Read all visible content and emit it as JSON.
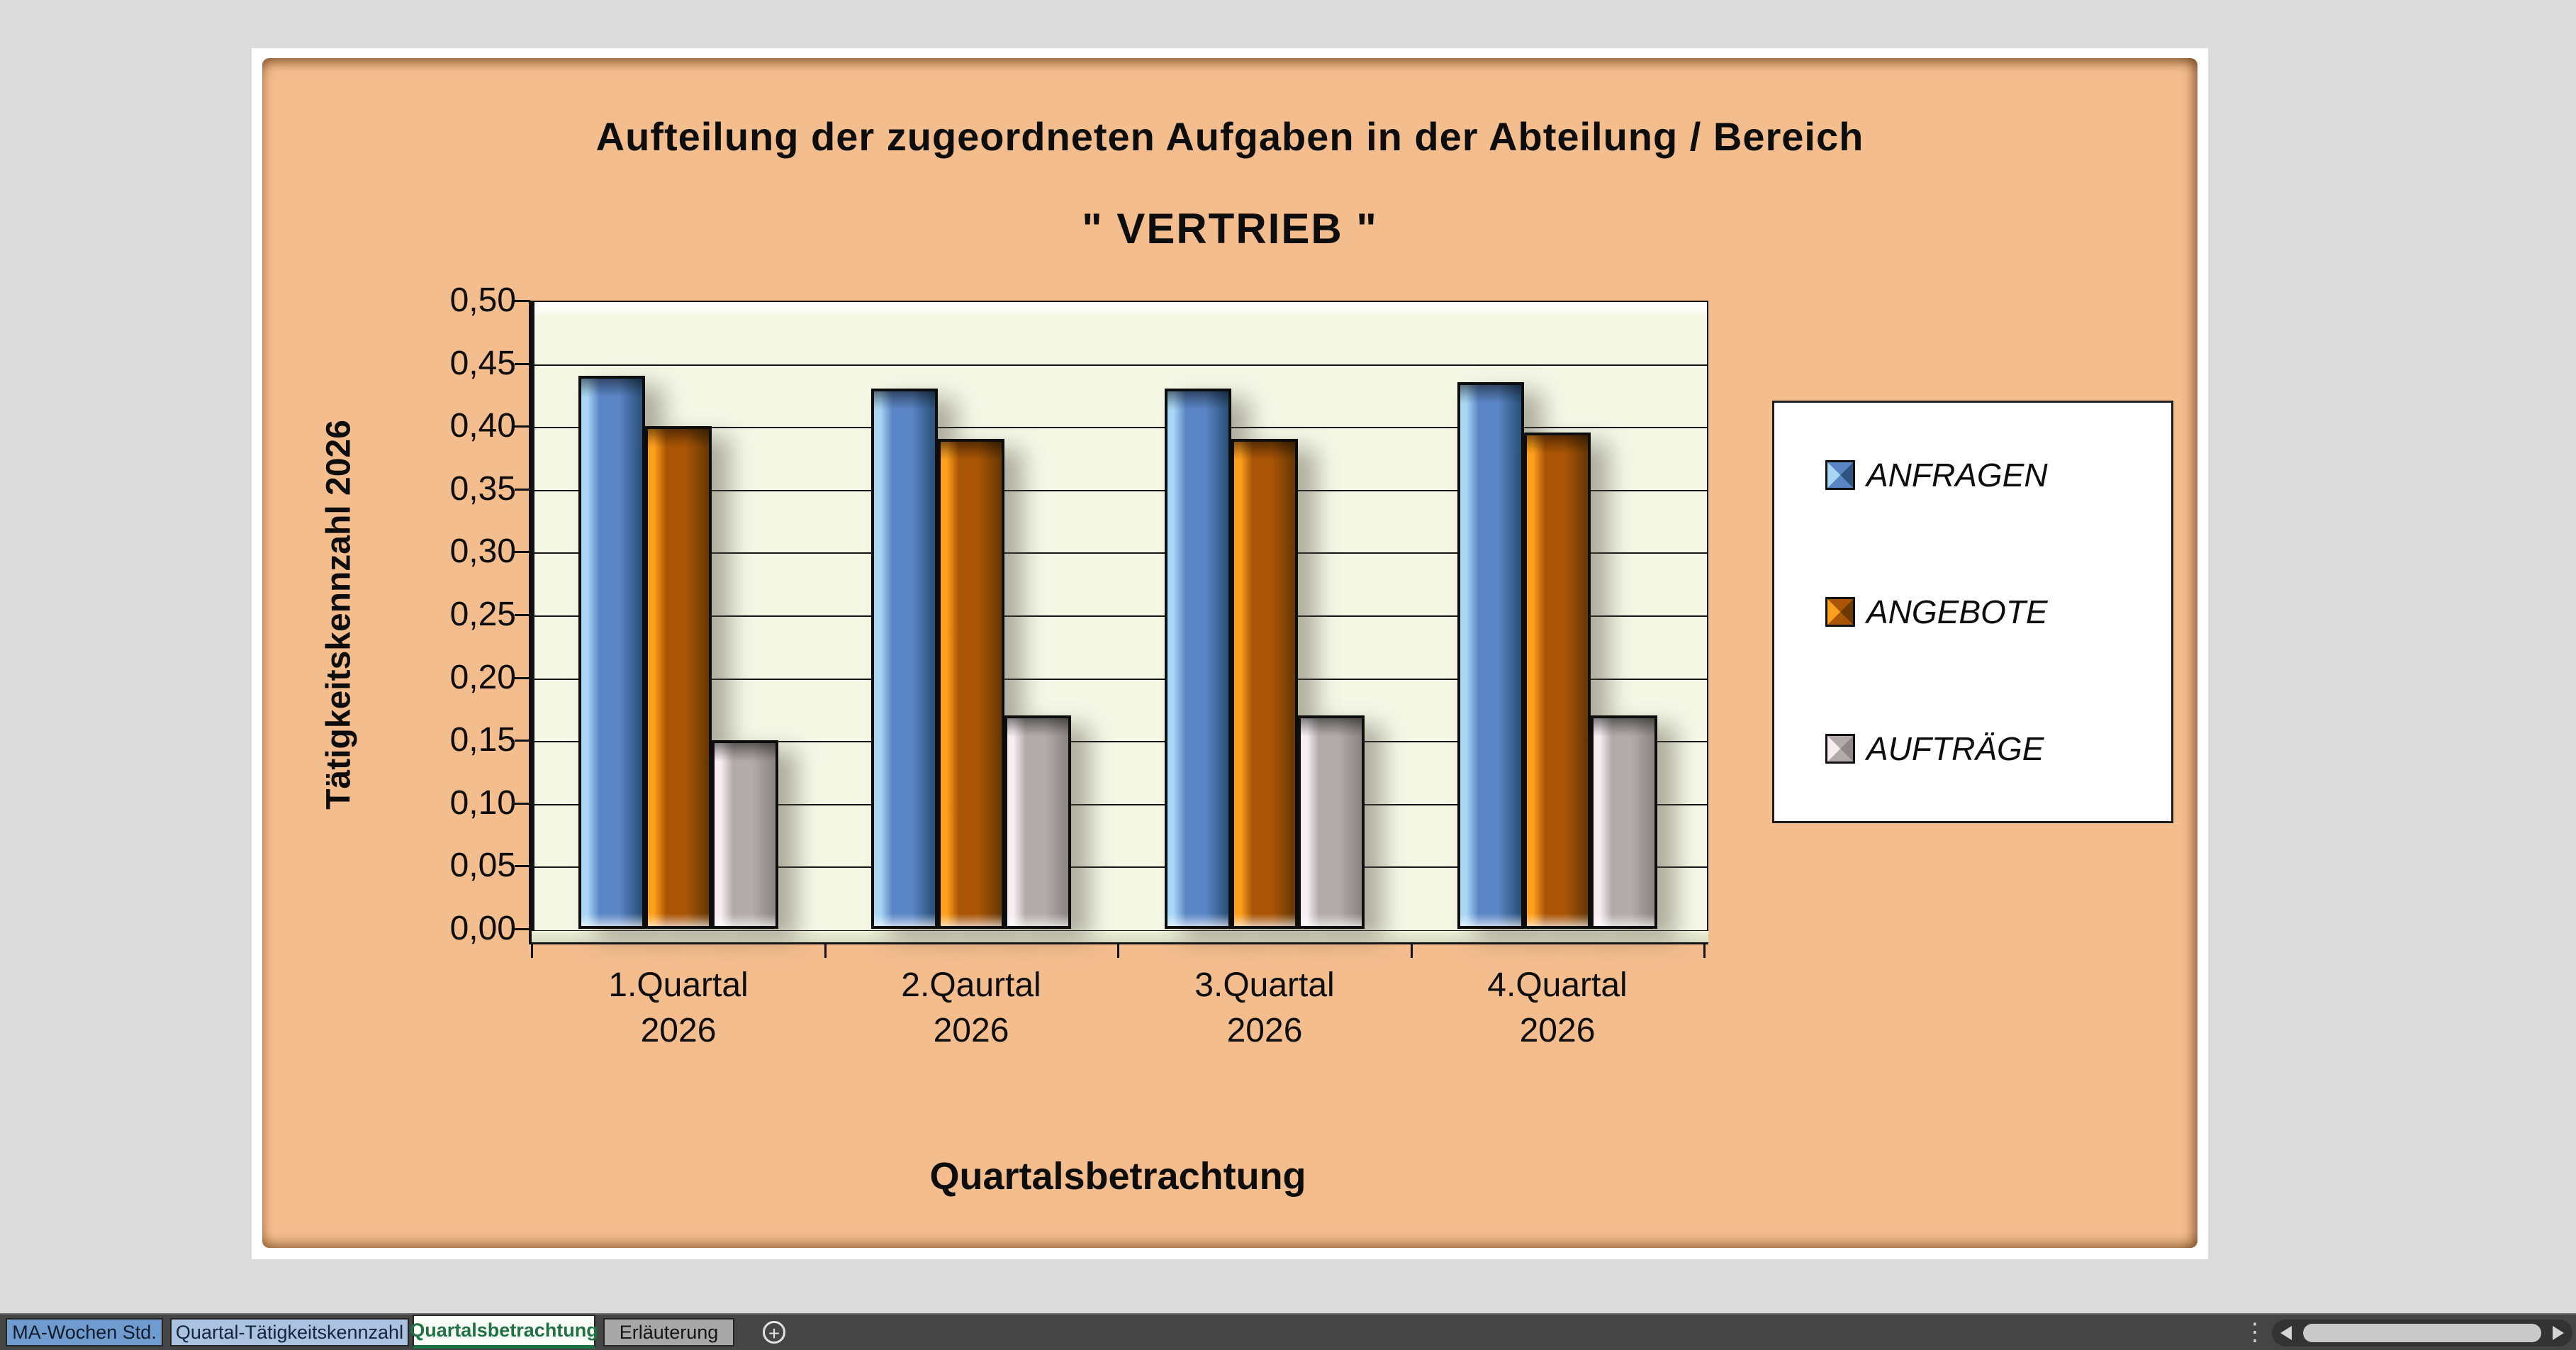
{
  "window": {
    "background_color": "#dcdcdc",
    "sheet_color": "#ffffff",
    "panel_color": "#f4bd8e"
  },
  "chart_data": {
    "type": "bar",
    "title": "Aufteilung der zugeordneten Aufgaben in der Abteilung / Bereich",
    "subtitle": "\" VERTRIEB \"",
    "categories": [
      "1.Quartal\n2026",
      "2.Qaurtal\n2026",
      "3.Quartal\n2026",
      "4.Quartal\n2026"
    ],
    "series": [
      {
        "name": "ANFRAGEN",
        "values": [
          0.44,
          0.43,
          0.43,
          0.435
        ],
        "color_light": "#a9d6f5",
        "color_mid": "#5b86c6",
        "color_dark": "#2f5480"
      },
      {
        "name": "ANGEBOTE",
        "values": [
          0.4,
          0.39,
          0.39,
          0.395
        ],
        "color_light": "#ffa01c",
        "color_mid": "#aa5506",
        "color_dark": "#6b3a03"
      },
      {
        "name": "AUFTRÄGE",
        "values": [
          0.15,
          0.17,
          0.17,
          0.17
        ],
        "color_light": "#f7edf3",
        "color_mid": "#b3abaa",
        "color_dark": "#8f8785"
      }
    ],
    "xlabel": "Quartalsbetrachtung",
    "ylabel": "Tätigkeitskennzahl 2026",
    "ylim": [
      0,
      0.5
    ],
    "y_tick_labels": [
      "0,50",
      "0,45",
      "0,40",
      "0,35",
      "0,30",
      "0,25",
      "0,20",
      "0,15",
      "0,10",
      "0,05",
      "0,00"
    ],
    "grid": true,
    "legend_position": "right",
    "plot_bg": "#f4f8e5"
  },
  "sheet_tabs": [
    {
      "label": "MA-Wochen Std.",
      "bg": "#6f9bcf",
      "fg": "#101c2e",
      "active": false
    },
    {
      "label": "Quartal-Tätigkeitskennzahl",
      "bg": "#abc3e0",
      "fg": "#15253d",
      "active": false
    },
    {
      "label": "Quartalsbetrachtung",
      "bg": "#fbfdf8",
      "fg": "#1f7244",
      "active": true,
      "accent": "#1e7145"
    },
    {
      "label": "Erläuterung",
      "bg": "#a8a8a8",
      "fg": "#141414",
      "active": false
    }
  ],
  "tabbar_icons": {
    "add_sheet_icon": "+",
    "overflow_dots_icon": "⋮",
    "scroll_left_icon": "◀",
    "scroll_right_icon": "▶"
  }
}
